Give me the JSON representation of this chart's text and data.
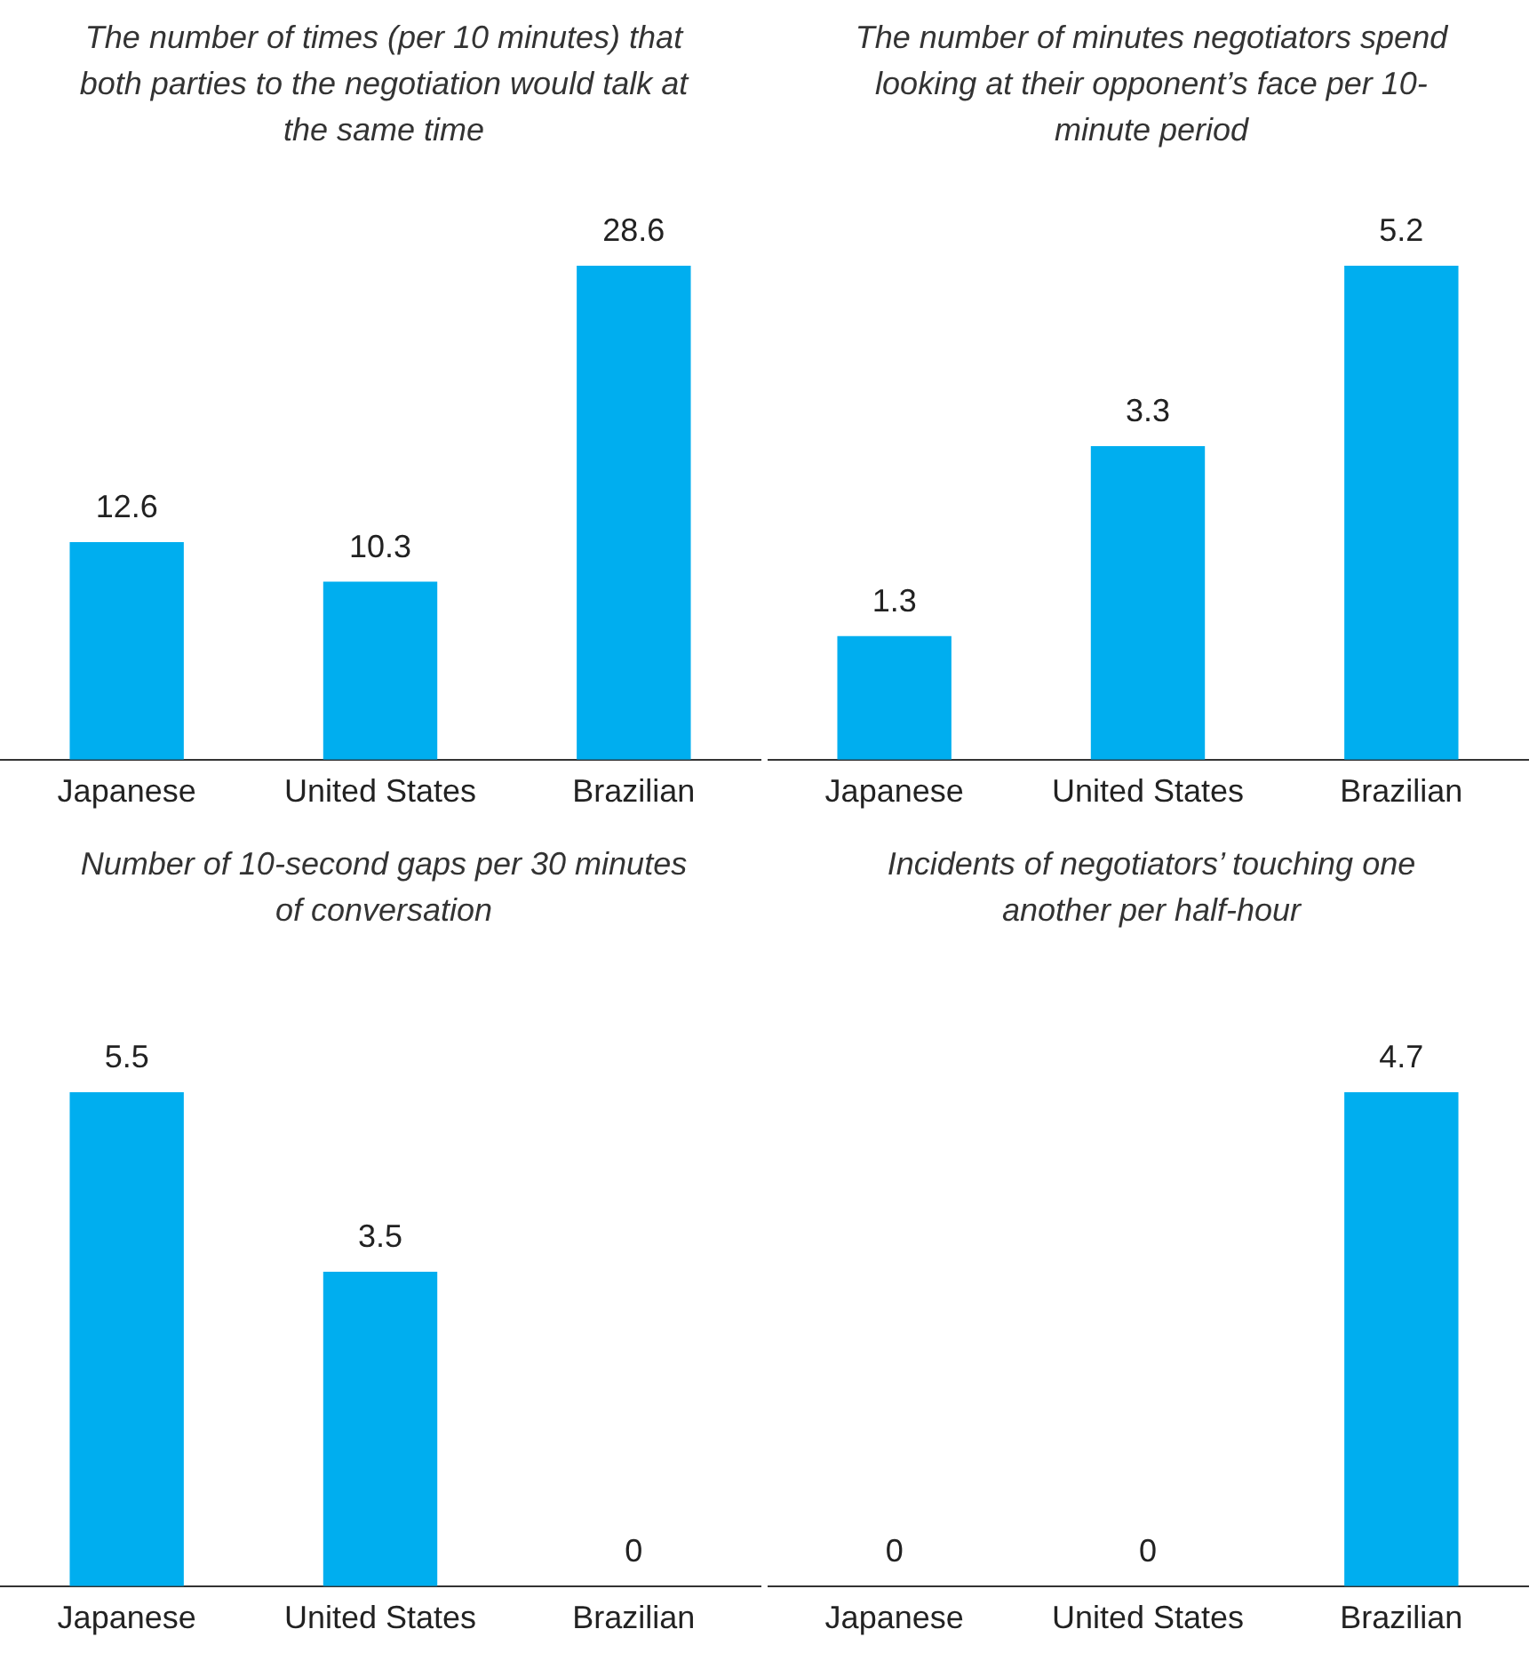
{
  "chart_data": [
    {
      "type": "bar",
      "title": "The number of times (per 10 minutes) that both parties to the negotiation would talk at the same time",
      "categories": [
        "Japanese",
        "United States",
        "Brazilian"
      ],
      "values": [
        12.6,
        10.3,
        28.6
      ],
      "color": "#00aeef",
      "data_labels": true
    },
    {
      "type": "bar",
      "title": "The number of minutes negotiators spend looking at their opponent’s face per 10-minute period",
      "categories": [
        "Japanese",
        "United States",
        "Brazilian"
      ],
      "values": [
        1.3,
        3.3,
        5.2
      ],
      "color": "#00aeef",
      "data_labels": true
    },
    {
      "type": "bar",
      "title": "Number of 10-second gaps per 30 minutes of conversation",
      "categories": [
        "Japanese",
        "United States",
        "Brazilian"
      ],
      "values": [
        5.5,
        3.5,
        0
      ],
      "color": "#00aeef",
      "data_labels": true
    },
    {
      "type": "bar",
      "title": "Incidents of negotiators’ touching one another per half-hour",
      "categories": [
        "Japanese",
        "United States",
        "Brazilian"
      ],
      "values": [
        0,
        0,
        4.7
      ],
      "color": "#00aeef",
      "data_labels": true
    }
  ]
}
